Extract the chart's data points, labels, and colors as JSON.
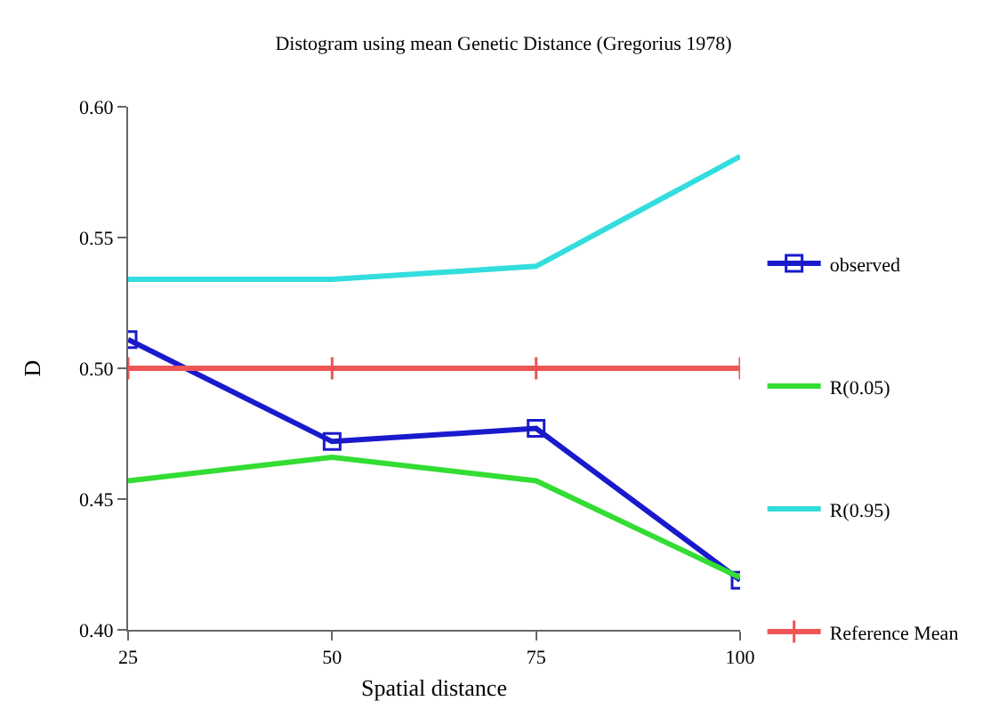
{
  "chart_data": {
    "type": "line",
    "title": "Distogram using mean Genetic Distance (Gregorius 1978)",
    "xlabel": "Spatial distance",
    "ylabel": "D",
    "x": [
      25,
      50,
      75,
      100
    ],
    "xlim": [
      25,
      100
    ],
    "xticks": [
      25,
      50,
      75,
      100
    ],
    "ylim": [
      0.4,
      0.6
    ],
    "yticks": [
      {
        "value": 0.4,
        "label": "0.40"
      },
      {
        "value": 0.45,
        "label": "0.45"
      },
      {
        "value": 0.5,
        "label": "0.50"
      },
      {
        "value": 0.55,
        "label": "0.55"
      },
      {
        "value": 0.6,
        "label": "0.60"
      }
    ],
    "grid": false,
    "legend": "right",
    "marker": "none",
    "series": [
      {
        "name": "observed",
        "color": "#1a1acc",
        "marker": "square",
        "values": [
          0.511,
          0.472,
          0.477,
          0.419
        ]
      },
      {
        "name": "R(0.05)",
        "color": "#33dd33",
        "values": [
          0.457,
          0.466,
          0.457,
          0.42
        ]
      },
      {
        "name": "R(0.95)",
        "color": "#33dddd",
        "values": [
          0.534,
          0.534,
          0.539,
          0.581
        ]
      },
      {
        "name": "Reference Mean",
        "color": "#ee5555",
        "marker": "cross",
        "values": [
          0.5,
          0.5,
          0.5,
          0.5
        ]
      }
    ]
  }
}
